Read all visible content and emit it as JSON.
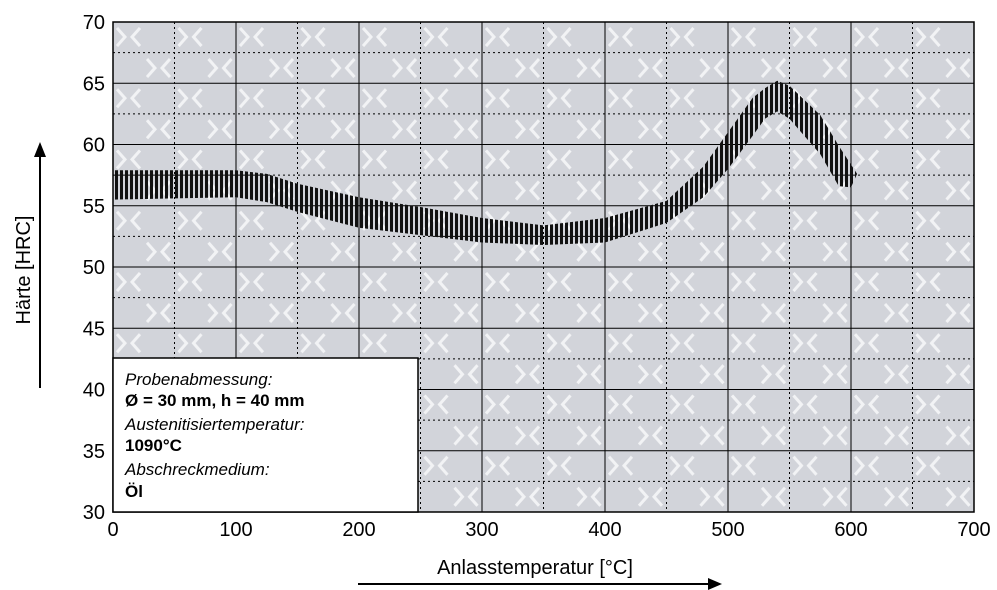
{
  "chart_data": {
    "type": "area",
    "title": "",
    "xlabel": "Anlasstemperatur [°C]",
    "ylabel": "Härte [HRC]",
    "xlim": [
      0,
      700
    ],
    "ylim": [
      30,
      70
    ],
    "x_ticks": [
      "0",
      "100",
      "200",
      "300",
      "400",
      "500",
      "600",
      "700"
    ],
    "y_ticks": [
      "30",
      "35",
      "40",
      "45",
      "50",
      "55",
      "60",
      "65",
      "70"
    ],
    "grid": true,
    "series": [
      {
        "points": [
          [
            0,
            56.7
          ],
          [
            50,
            56.7
          ],
          [
            100,
            56.8
          ],
          [
            125,
            56.5
          ],
          [
            150,
            55.6
          ],
          [
            200,
            54.5
          ],
          [
            250,
            53.8
          ],
          [
            300,
            53.0
          ],
          [
            350,
            52.6
          ],
          [
            400,
            53.0
          ],
          [
            450,
            54.5
          ],
          [
            480,
            57.0
          ],
          [
            500,
            59.5
          ],
          [
            520,
            62.3
          ],
          [
            530,
            63.3
          ],
          [
            540,
            64.0
          ],
          [
            550,
            63.5
          ],
          [
            575,
            60.8
          ],
          [
            590,
            58.3
          ],
          [
            600,
            57.0
          ]
        ],
        "band_low": [
          [
            0,
            55.5
          ],
          [
            50,
            55.6
          ],
          [
            100,
            55.7
          ],
          [
            125,
            55.3
          ],
          [
            150,
            54.5
          ],
          [
            200,
            53.2
          ],
          [
            250,
            52.6
          ],
          [
            300,
            52.0
          ],
          [
            350,
            51.8
          ],
          [
            400,
            52.0
          ],
          [
            450,
            53.6
          ],
          [
            480,
            55.7
          ],
          [
            500,
            58.0
          ],
          [
            520,
            60.7
          ],
          [
            530,
            62.1
          ],
          [
            540,
            62.7
          ],
          [
            550,
            62.1
          ],
          [
            575,
            59.2
          ],
          [
            590,
            56.6
          ],
          [
            600,
            56.5
          ]
        ],
        "band_high": [
          [
            0,
            57.9
          ],
          [
            50,
            57.9
          ],
          [
            100,
            57.9
          ],
          [
            125,
            57.6
          ],
          [
            150,
            56.8
          ],
          [
            200,
            55.7
          ],
          [
            250,
            54.9
          ],
          [
            300,
            54.0
          ],
          [
            350,
            53.4
          ],
          [
            400,
            54.0
          ],
          [
            450,
            55.4
          ],
          [
            480,
            58.2
          ],
          [
            500,
            61.0
          ],
          [
            520,
            63.8
          ],
          [
            530,
            64.6
          ],
          [
            540,
            65.2
          ],
          [
            550,
            64.8
          ],
          [
            575,
            62.4
          ],
          [
            590,
            59.9
          ],
          [
            605,
            57.6
          ]
        ]
      }
    ]
  },
  "note": {
    "line1": "Probenabmessung:",
    "line2": "Ø = 30 mm, h = 40 mm",
    "line3": "Austenitisiertemperatur:",
    "line4": "1090°C",
    "line5": "Abschreckmedium:",
    "line6": "Öl"
  },
  "colors": {
    "plot_bg": "#d2d4da",
    "grid": "#000000",
    "hatch": "#111111",
    "watermark": "#f2f3f5"
  }
}
